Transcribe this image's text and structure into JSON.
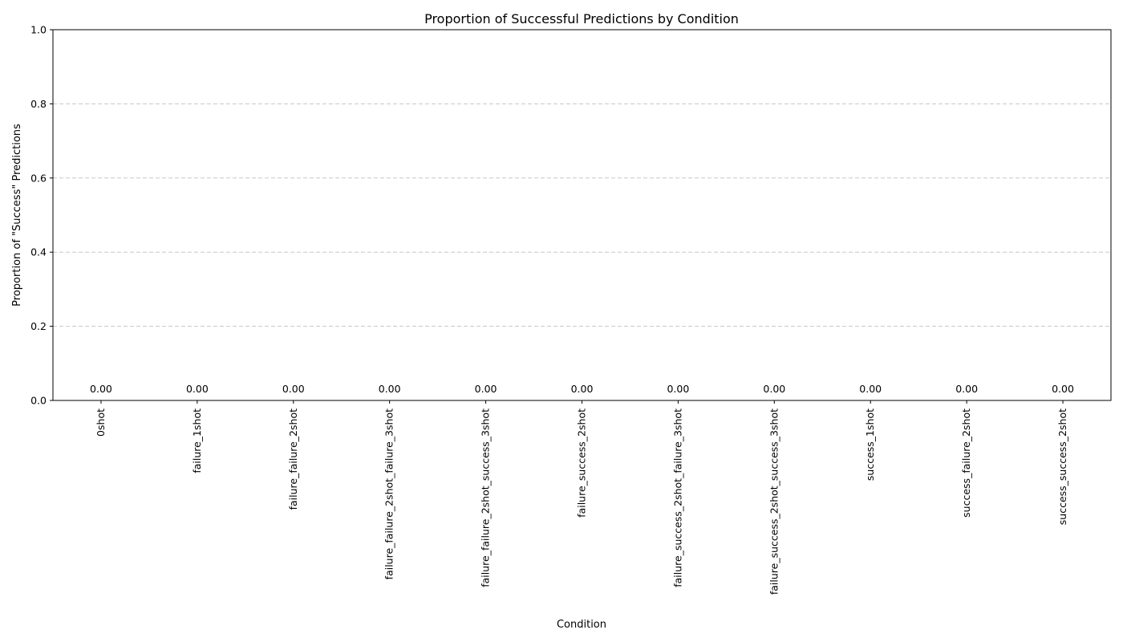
{
  "chart_data": {
    "type": "bar",
    "title": "Proportion of Successful Predictions by Condition",
    "xlabel": "Condition",
    "ylabel": "Proportion of \"Success\" Predictions",
    "categories": [
      "0shot",
      "failure_1shot",
      "failure_failure_2shot",
      "failure_failure_2shot_failure_3shot",
      "failure_failure_2shot_success_3shot",
      "failure_success_2shot",
      "failure_success_2shot_failure_3shot",
      "failure_success_2shot_success_3shot",
      "success_1shot",
      "success_failure_2shot",
      "success_success_2shot"
    ],
    "values": [
      0,
      0,
      0,
      0,
      0,
      0,
      0,
      0,
      0,
      0,
      0
    ],
    "data_labels": [
      "0.00",
      "0.00",
      "0.00",
      "0.00",
      "0.00",
      "0.00",
      "0.00",
      "0.00",
      "0.00",
      "0.00",
      "0.00"
    ],
    "ylim": [
      0,
      1
    ],
    "yticks": [
      "0.0",
      "0.2",
      "0.4",
      "0.6",
      "0.8",
      "1.0"
    ],
    "ytick_values": [
      0,
      0.2,
      0.4,
      0.6,
      0.8,
      1.0
    ],
    "grid": "y-dashed",
    "colors": {
      "bar": "#4c72b0",
      "grid": "#c8c8c8",
      "axis": "#000000"
    }
  }
}
